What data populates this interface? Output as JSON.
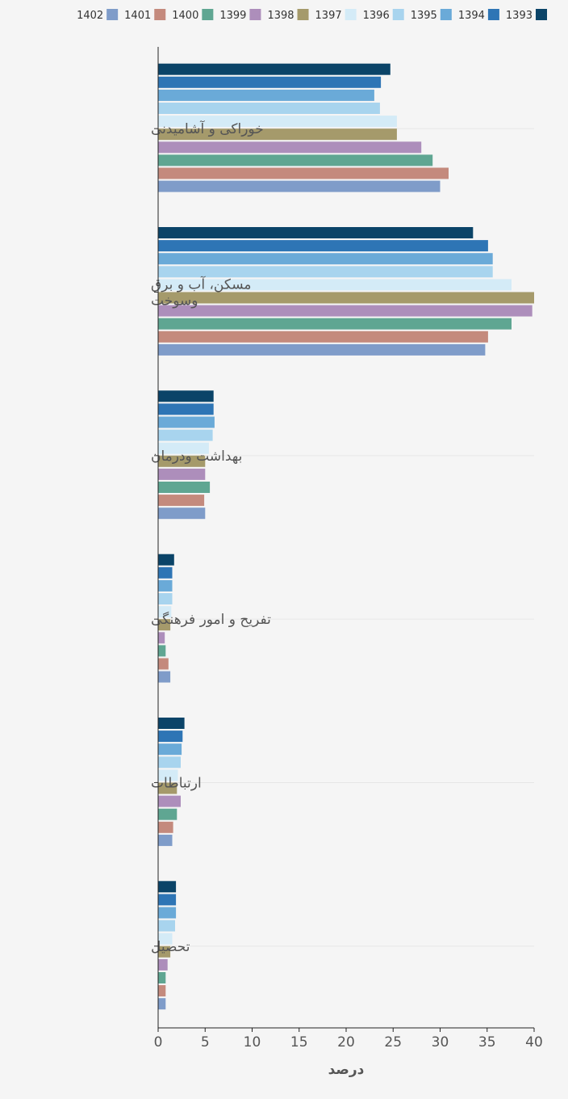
{
  "chart_data": {
    "type": "bar",
    "orientation": "horizontal",
    "title": "",
    "xlabel": "درصد",
    "ylabel": "",
    "xlim": [
      0,
      40
    ],
    "x_ticks": [
      "0",
      "5",
      "10",
      "15",
      "20",
      "25",
      "30",
      "35",
      "40"
    ],
    "grid": true,
    "legend_position": "top",
    "categories": [
      [
        "خوراکی و آشامیدنی"
      ],
      [
        "مسکن، آب و برق",
        "وسوخت"
      ],
      [
        "بهداشت ودرمان"
      ],
      [
        "تفریح و امور فرهنگی"
      ],
      [
        "ارتباطات"
      ],
      [
        "تحصیل"
      ]
    ],
    "series": [
      {
        "name": "1393",
        "color": "#0b4468",
        "values": [
          24.7,
          33.5,
          5.9,
          1.7,
          2.8,
          1.9
        ]
      },
      {
        "name": "1394",
        "color": "#2e75b5",
        "values": [
          23.7,
          35.1,
          5.9,
          1.5,
          2.6,
          1.9
        ]
      },
      {
        "name": "1395",
        "color": "#6aaad8",
        "values": [
          23.0,
          35.6,
          6.0,
          1.5,
          2.5,
          1.9
        ]
      },
      {
        "name": "1396",
        "color": "#a8d4ee",
        "values": [
          23.6,
          35.6,
          5.8,
          1.5,
          2.4,
          1.8
        ]
      },
      {
        "name": "1397",
        "color": "#d4ebf7",
        "values": [
          25.4,
          37.6,
          5.4,
          1.4,
          2.1,
          1.5
        ]
      },
      {
        "name": "1398",
        "color": "#a59a6b",
        "values": [
          25.4,
          40.0,
          5.0,
          1.3,
          2.0,
          1.3
        ]
      },
      {
        "name": "1399",
        "color": "#ad8ebb",
        "values": [
          28.0,
          39.8,
          5.0,
          0.7,
          2.4,
          1.0
        ]
      },
      {
        "name": "1400",
        "color": "#5fa692",
        "values": [
          29.2,
          37.6,
          5.5,
          0.8,
          2.0,
          0.8
        ]
      },
      {
        "name": "1401",
        "color": "#c48a7d",
        "values": [
          30.9,
          35.1,
          4.9,
          1.1,
          1.6,
          0.8
        ]
      },
      {
        "name": "1402",
        "color": "#7f9cc9",
        "values": [
          30.0,
          34.8,
          5.0,
          1.3,
          1.5,
          0.8
        ]
      }
    ]
  }
}
